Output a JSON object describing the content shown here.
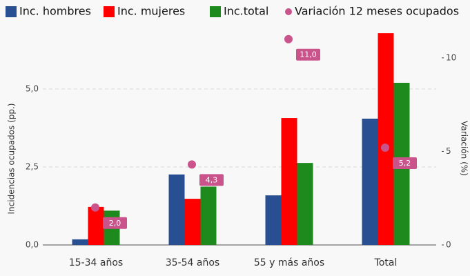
{
  "chart_data": {
    "type": "bar",
    "categories": [
      "15-34 años",
      "35-54 años",
      "55 y más años",
      "Total"
    ],
    "series": [
      {
        "name": "Inc. hombres",
        "color": "#274f91",
        "values": [
          0.18,
          2.26,
          1.59,
          4.05
        ]
      },
      {
        "name": "Inc. mujeres",
        "color": "#ff0000",
        "values": [
          1.22,
          1.48,
          4.07,
          6.79
        ]
      },
      {
        "name": "Inc.total",
        "color": "#1e8a1e",
        "values": [
          1.1,
          1.87,
          2.63,
          5.2
        ]
      },
      {
        "name": "Variación 12 meses ocupados",
        "color": "#c9538a",
        "type": "scatter",
        "axis": "y2",
        "values": [
          2.0,
          4.3,
          11.0,
          5.2
        ],
        "value_labels": [
          "2,0",
          "4,3",
          "11,0",
          "5,2"
        ]
      }
    ],
    "ylabel": "Incidencias ocupados (pp.)",
    "y2label": "Variación (%)",
    "ylim": [
      0,
      7.2
    ],
    "yticks": [
      {
        "value": 0,
        "label": "0,0"
      },
      {
        "value": 2.5,
        "label": "2,5"
      },
      {
        "value": 5,
        "label": "5,0"
      }
    ],
    "y2lim": [
      0,
      12
    ],
    "y2ticks": [
      0,
      5,
      10
    ],
    "grid": true,
    "legend": "top"
  }
}
